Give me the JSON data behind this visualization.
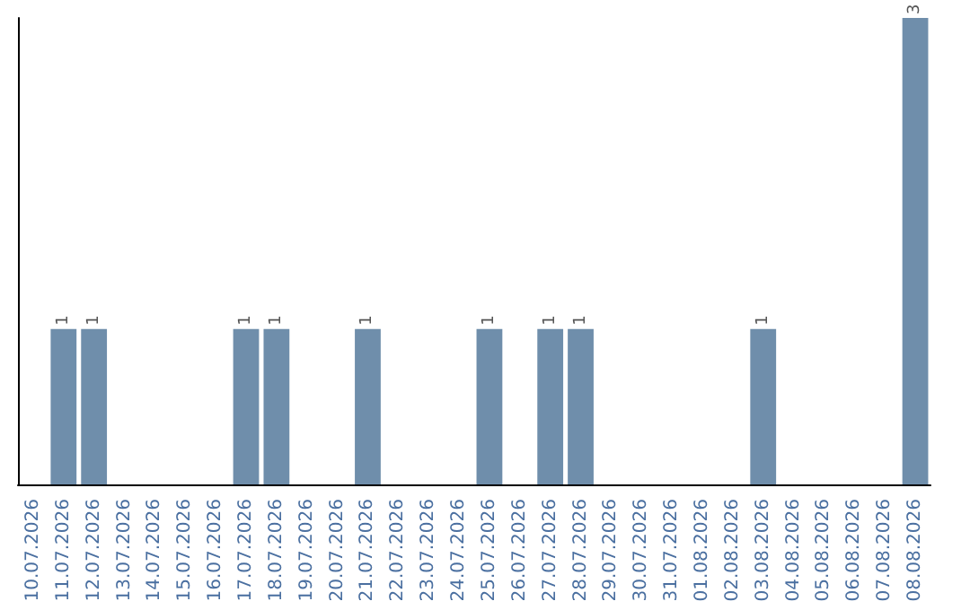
{
  "chart_data": {
    "type": "bar",
    "categories": [
      "10.07.2026",
      "11.07.2026",
      "12.07.2026",
      "13.07.2026",
      "14.07.2026",
      "15.07.2026",
      "16.07.2026",
      "17.07.2026",
      "18.07.2026",
      "19.07.2026",
      "20.07.2026",
      "21.07.2026",
      "22.07.2026",
      "23.07.2026",
      "24.07.2026",
      "25.07.2026",
      "26.07.2026",
      "27.07.2026",
      "28.07.2026",
      "29.07.2026",
      "30.07.2026",
      "31.07.2026",
      "01.08.2026",
      "02.08.2026",
      "03.08.2026",
      "04.08.2026",
      "05.08.2026",
      "06.08.2026",
      "07.08.2026",
      "08.08.2026"
    ],
    "values": [
      0,
      1,
      1,
      0,
      0,
      0,
      0,
      1,
      1,
      0,
      0,
      1,
      0,
      0,
      0,
      1,
      0,
      1,
      1,
      0,
      0,
      0,
      0,
      0,
      1,
      0,
      0,
      0,
      0,
      3
    ],
    "value_labels": [
      null,
      "1",
      "1",
      null,
      null,
      null,
      null,
      "1",
      "1",
      null,
      null,
      "1",
      null,
      null,
      null,
      "1",
      null,
      "1",
      "1",
      null,
      null,
      null,
      null,
      null,
      "1",
      null,
      null,
      null,
      null,
      "3"
    ],
    "color": "#6f8eab",
    "tick_labels": "x"
  }
}
